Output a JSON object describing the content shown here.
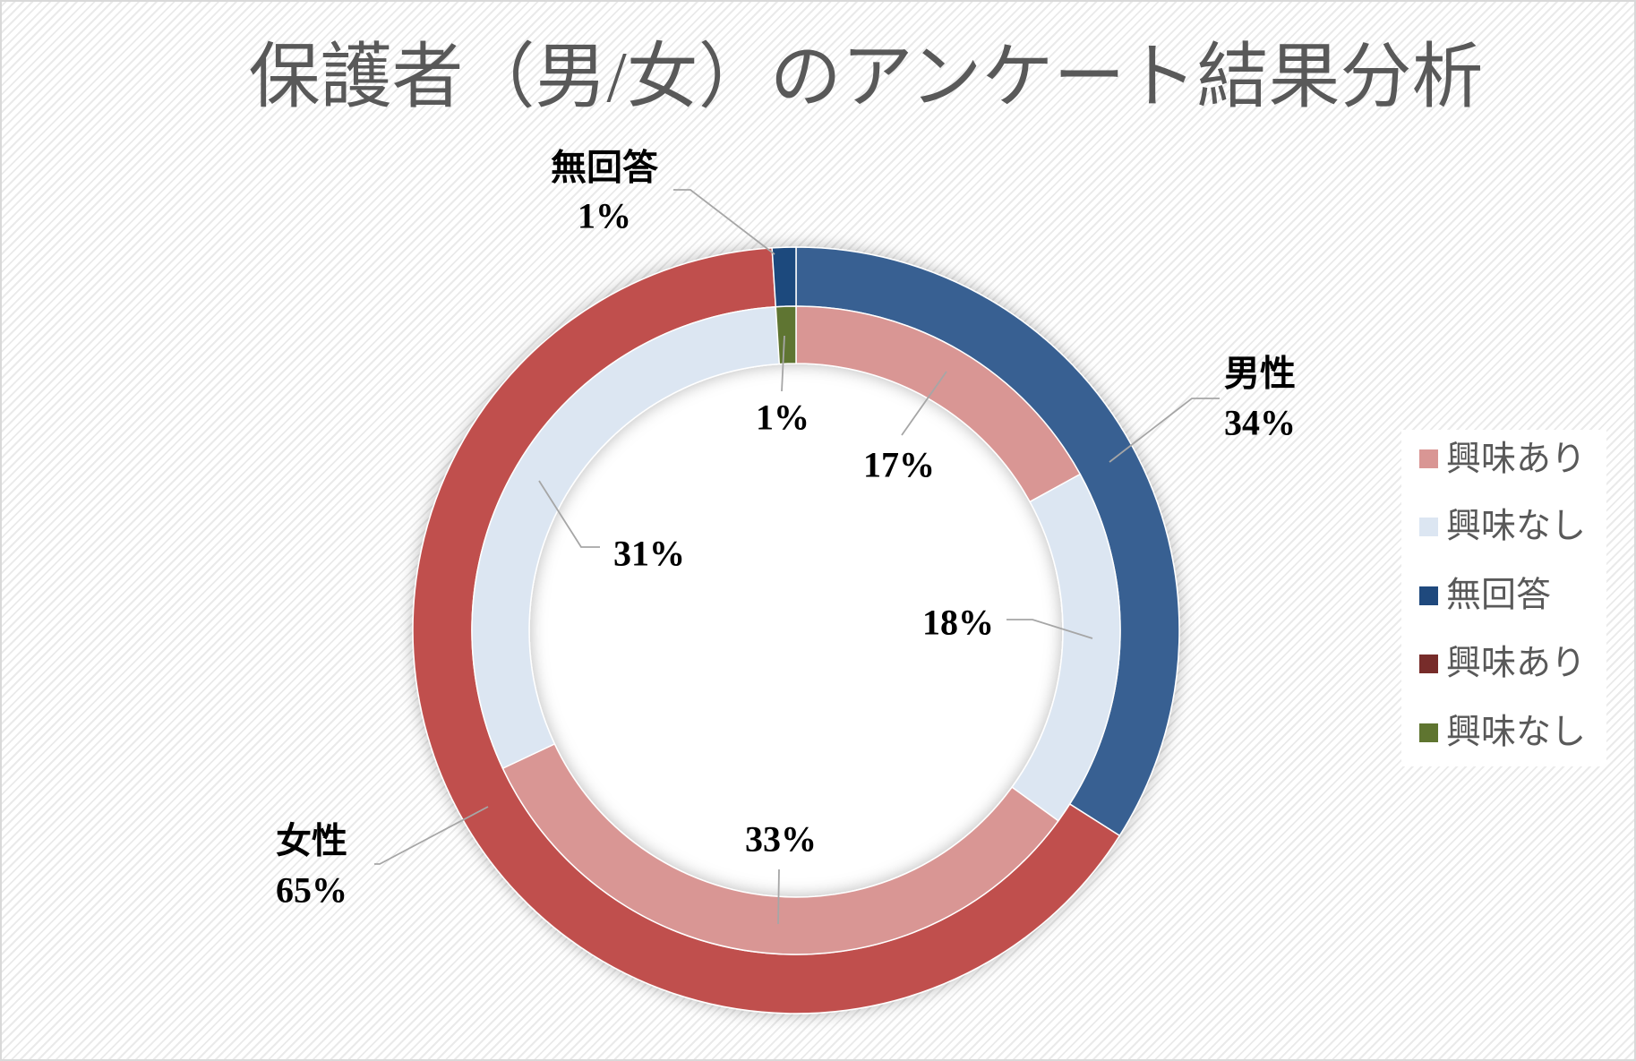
{
  "chart_data": {
    "type": "pie",
    "title": "保護者（男/女）のアンケート結果分析",
    "rings": [
      {
        "slices": [
          {
            "label": "男性",
            "value": 34,
            "value_label": "34%",
            "color": "#376092"
          },
          {
            "label": "女性",
            "value": 65,
            "value_label": "65%",
            "color": "#C0504D"
          },
          {
            "label": "無回答",
            "value": 1,
            "value_label": "1%",
            "color": "#1F497D"
          }
        ]
      },
      {
        "slices": [
          {
            "value": 17,
            "value_label": "17%",
            "color": "#D99694"
          },
          {
            "value": 18,
            "value_label": "18%",
            "color": "#DCE6F2"
          },
          {
            "value": 33,
            "value_label": "33%",
            "color": "#D99694"
          },
          {
            "value": 31,
            "value_label": "31%",
            "color": "#DCE6F2"
          },
          {
            "value": 1,
            "value_label": "1%",
            "color": "#5F7530"
          }
        ]
      }
    ],
    "legend": {
      "position": "right",
      "entries": [
        {
          "label": "興味あり",
          "color": "#D99694"
        },
        {
          "label": "興味なし",
          "color": "#DCE6F2"
        },
        {
          "label": "無回答",
          "color": "#1F497D"
        },
        {
          "label": "興味あり",
          "color": "#772C2A"
        },
        {
          "label": "興味なし",
          "color": "#5F7530"
        }
      ]
    }
  }
}
